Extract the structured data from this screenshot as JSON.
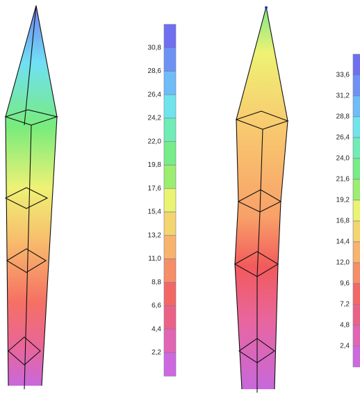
{
  "legends": [
    {
      "labels": [
        "30,8",
        "28,6",
        "26,4",
        "24,2",
        "22,0",
        "19,8",
        "17,6",
        "15,4",
        "13,2",
        "11,0",
        "8,8",
        "6,6",
        "4,4",
        "2,2"
      ]
    },
    {
      "labels": [
        "33,6",
        "31,2",
        "28,8",
        "26,4",
        "24,0",
        "21,6",
        "19,2",
        "16,8",
        "14,4",
        "12,0",
        "9,6",
        "7,2",
        "4,8",
        "2,4"
      ]
    }
  ]
}
